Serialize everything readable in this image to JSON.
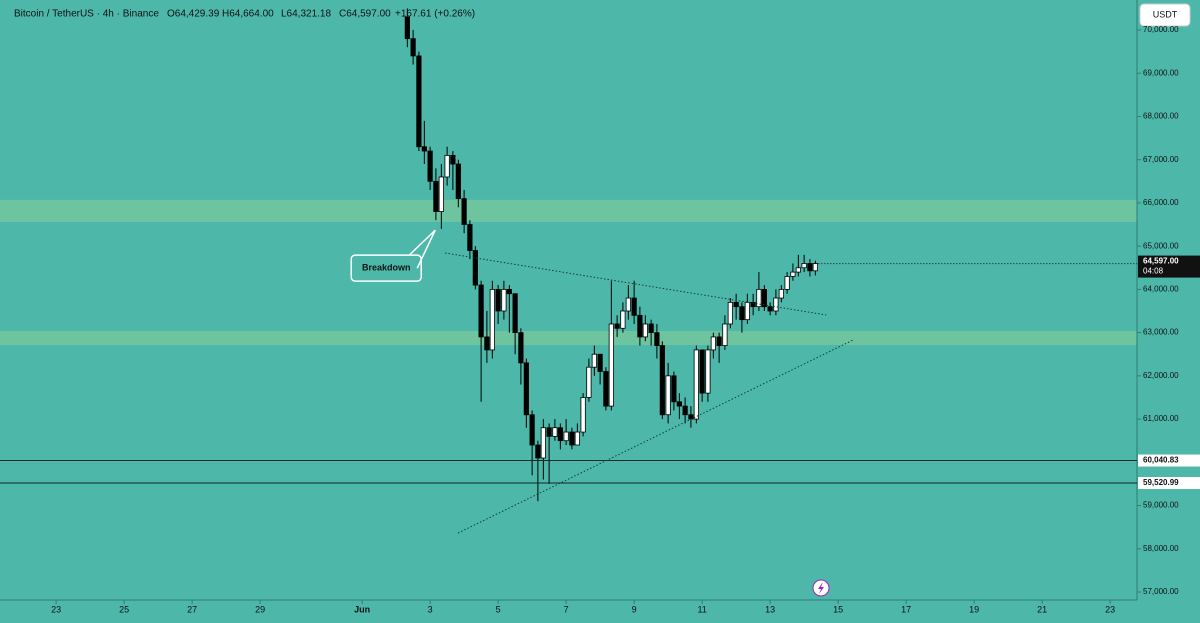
{
  "header": {
    "symbol": "Bitcoin / TetherUS · 4h · Binance",
    "open": "O64,429.39",
    "high": "H64,664.00",
    "low": "L64,321.18",
    "close": "C64,597.00",
    "change": "+167.61 (+0.26%)",
    "currency": "USDT"
  },
  "chart_data": {
    "type": "candlestick",
    "x": [
      33.33,
      33.5,
      33.67,
      33.83,
      34,
      34.17,
      34.33,
      34.5,
      34.67,
      34.83,
      35,
      35.17,
      35.33,
      35.5,
      35.67,
      35.83,
      36,
      36.17,
      36.33,
      36.5,
      36.67,
      36.83,
      37,
      37.17,
      37.33,
      37.5,
      37.67,
      37.83,
      38,
      38.17,
      38.33,
      38.5,
      38.67,
      38.83,
      39,
      39.17,
      39.33,
      39.5,
      39.67,
      39.83,
      40,
      40.17,
      40.33,
      40.5,
      40.67,
      40.83,
      41,
      41.17,
      41.33,
      41.5,
      41.67,
      41.83,
      42,
      42.17,
      42.33,
      42.5,
      42.67,
      42.83,
      43,
      43.17,
      43.33,
      43.5,
      43.67,
      43.83,
      44,
      44.17,
      44.33,
      44.5,
      44.67,
      44.83,
      45,
      45.17,
      45.33
    ],
    "open": [
      70300,
      69800,
      69400,
      67300,
      67200,
      66500,
      65800,
      66600,
      67100,
      66900,
      66100,
      65500,
      64900,
      64100,
      62900,
      62600,
      64000,
      63500,
      64000,
      63900,
      63000,
      62300,
      61100,
      60400,
      60100,
      60800,
      60600,
      60800,
      60500,
      60700,
      60400,
      60700,
      61500,
      62200,
      62500,
      62100,
      61300,
      63200,
      63100,
      63500,
      63800,
      63400,
      62900,
      63200,
      63000,
      62700,
      61100,
      62000,
      61400,
      61300,
      61100,
      61000,
      62600,
      61600,
      62600,
      62900,
      62700,
      63200,
      63700,
      63600,
      63300,
      63700,
      63600,
      64000,
      63600,
      63500,
      63800,
      64000,
      64300,
      64400,
      64500,
      64600,
      64429.39
    ],
    "high": [
      70500,
      70000,
      69500,
      67900,
      67300,
      66800,
      66900,
      67300,
      67200,
      67000,
      66300,
      65600,
      65000,
      64200,
      63500,
      64200,
      64100,
      64200,
      64100,
      63900,
      63100,
      62400,
      61200,
      60500,
      61000,
      60900,
      61000,
      60900,
      61000,
      60800,
      60900,
      61600,
      62400,
      62700,
      62500,
      62200,
      64200,
      63400,
      63700,
      64100,
      64200,
      63600,
      63400,
      63300,
      63200,
      62800,
      62300,
      62100,
      61600,
      61500,
      61300,
      62700,
      62600,
      62700,
      63000,
      63000,
      63400,
      63800,
      63900,
      63700,
      63900,
      63900,
      64400,
      64100,
      63700,
      64000,
      64100,
      64400,
      64600,
      64800,
      64800,
      64700,
      64664
    ],
    "low": [
      69600,
      69200,
      67200,
      66900,
      66300,
      65600,
      65400,
      66400,
      66300,
      65900,
      65300,
      64700,
      64000,
      61400,
      62300,
      62400,
      63200,
      63300,
      63000,
      62500,
      61800,
      60800,
      59700,
      59100,
      59600,
      59500,
      60500,
      60300,
      60400,
      60300,
      60400,
      60600,
      61400,
      62000,
      61800,
      61200,
      61200,
      62900,
      63000,
      63300,
      63200,
      62700,
      62800,
      62700,
      62400,
      61000,
      60900,
      61200,
      61000,
      60900,
      60800,
      60900,
      61400,
      61400,
      62400,
      62300,
      62600,
      63100,
      63300,
      63000,
      63200,
      63400,
      63500,
      63500,
      63400,
      63400,
      63700,
      63900,
      64200,
      64300,
      64400,
      64300,
      64321.18
    ],
    "close": [
      69800,
      69400,
      67300,
      67200,
      66500,
      65800,
      66600,
      67100,
      66900,
      66100,
      65500,
      64900,
      64100,
      62900,
      62600,
      64000,
      63500,
      64000,
      63900,
      63000,
      62300,
      61100,
      60400,
      60100,
      60800,
      60600,
      60800,
      60500,
      60700,
      60400,
      60700,
      61500,
      62200,
      62500,
      62100,
      61300,
      63200,
      63100,
      63500,
      63800,
      63400,
      62900,
      63200,
      63000,
      62700,
      61100,
      62000,
      61400,
      61300,
      61100,
      61000,
      62600,
      61600,
      62600,
      62900,
      62700,
      63200,
      63700,
      63600,
      63300,
      63700,
      63600,
      64000,
      63600,
      63500,
      63800,
      64000,
      64300,
      64400,
      64500,
      64600,
      64429.39,
      64597
    ],
    "up_color": "#ffffff",
    "down_color": "#000000",
    "background": "#4db8aa",
    "xlim": [
      21.35,
      54.79
    ],
    "xticks": [
      23,
      25,
      27,
      29,
      {
        "value": 32,
        "label": "Jun"
      },
      {
        "value": 34,
        "label": "3"
      },
      {
        "value": 36,
        "label": "5"
      },
      {
        "value": 38,
        "label": "7"
      },
      {
        "value": 40,
        "label": "9"
      },
      {
        "value": 42,
        "label": "11"
      },
      {
        "value": 44,
        "label": "13"
      },
      {
        "value": 46,
        "label": "15"
      },
      {
        "value": 48,
        "label": "17"
      },
      {
        "value": 50,
        "label": "19"
      },
      {
        "value": 52,
        "label": "21"
      },
      {
        "value": 54,
        "label": "23"
      }
    ],
    "ylim": [
      56815,
      70694
    ],
    "yticks": [
      {
        "value": 57000,
        "label": "57,000.00"
      },
      {
        "value": 58000,
        "label": "58,000.00"
      },
      {
        "value": 59000,
        "label": "59,000.00"
      },
      {
        "value": 60000,
        "label": "60,000.00"
      },
      {
        "value": 61000,
        "label": "61,000.00"
      },
      {
        "value": 62000,
        "label": "62,000.00"
      },
      {
        "value": 63000,
        "label": "63,000.00"
      },
      {
        "value": 64000,
        "label": "64,000.00"
      },
      {
        "value": 65000,
        "label": "65,000.00"
      },
      {
        "value": 66000,
        "label": "66,000.00"
      },
      {
        "value": 67000,
        "label": "67,000.00"
      },
      {
        "value": 68000,
        "label": "68,000.00"
      },
      {
        "value": 69000,
        "label": "69,000.00"
      },
      {
        "value": 70000,
        "label": "70,000.00"
      }
    ],
    "zones": [
      {
        "from": 65560,
        "to": 66070,
        "color": "#74c69d"
      },
      {
        "from": 62713,
        "to": 63037,
        "color": "#74c69d"
      }
    ],
    "levels": [
      {
        "value": 60040.83,
        "label": "60,040.83"
      },
      {
        "value": 59520.99,
        "label": "59,520.99"
      }
    ],
    "trendlines": [
      {
        "x": [
          34.44,
          45.65
        ],
        "y": [
          64842,
          63408
        ]
      },
      {
        "x": [
          34.82,
          46.44
        ],
        "y": [
          58364,
          62829
        ]
      }
    ],
    "last_price": {
      "value": 64597,
      "label": "64,597.00",
      "countdown": "04:08"
    },
    "annotation": {
      "text": "Breakdown",
      "x": 34.15,
      "y": 65370
    }
  }
}
